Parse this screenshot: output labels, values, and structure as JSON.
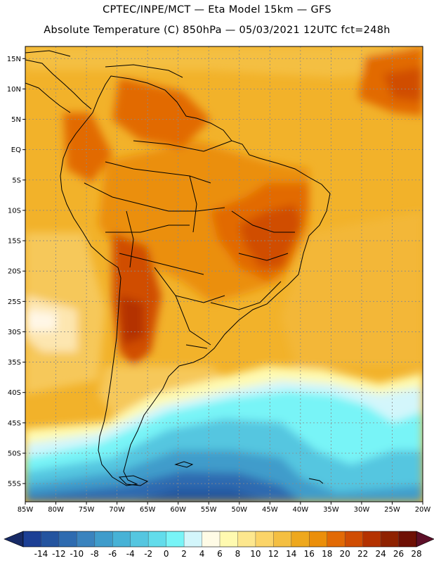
{
  "header": {
    "line1": "CPTEC/INPE/MCT —  Eta Model 15km — GFS",
    "line2": "Absolute Temperature (C) 850hPa — 05/03/2021 12UTC fct=248h"
  },
  "map": {
    "region": "South America",
    "lon_range": [
      -85,
      -20
    ],
    "lat_range": [
      -58,
      17
    ],
    "lon_labels": [
      "85W",
      "80W",
      "75W",
      "70W",
      "65W",
      "60W",
      "55W",
      "50W",
      "45W",
      "40W",
      "35W",
      "30W",
      "25W",
      "20W"
    ],
    "lat_labels": [
      "15N",
      "10N",
      "5N",
      "EQ",
      "5S",
      "10S",
      "15S",
      "20S",
      "25S",
      "30S",
      "35S",
      "40S",
      "45S",
      "50S",
      "55S"
    ]
  },
  "colorbar": {
    "labels": [
      "-14",
      "-12",
      "-10",
      "-8",
      "-6",
      "-4",
      "-2",
      "0",
      "2",
      "4",
      "6",
      "8",
      "10",
      "12",
      "14",
      "16",
      "18",
      "20",
      "22",
      "24",
      "26",
      "28"
    ],
    "colors": [
      "#1c3f95",
      "#24549f",
      "#2e6bb0",
      "#3a83be",
      "#3f9ccb",
      "#47b2d6",
      "#55c6e0",
      "#62dceb",
      "#78f4f7",
      "#d3f6fb",
      "#fffbe6",
      "#fffab0",
      "#fde78e",
      "#fbd468",
      "#f4bf42",
      "#eea81d",
      "#eb8f0a",
      "#e26a05",
      "#d04d03",
      "#b43200",
      "#8f2200",
      "#6e1004"
    ],
    "low_arrow_color": "#172a66",
    "high_arrow_color": "#5d0f28"
  }
}
